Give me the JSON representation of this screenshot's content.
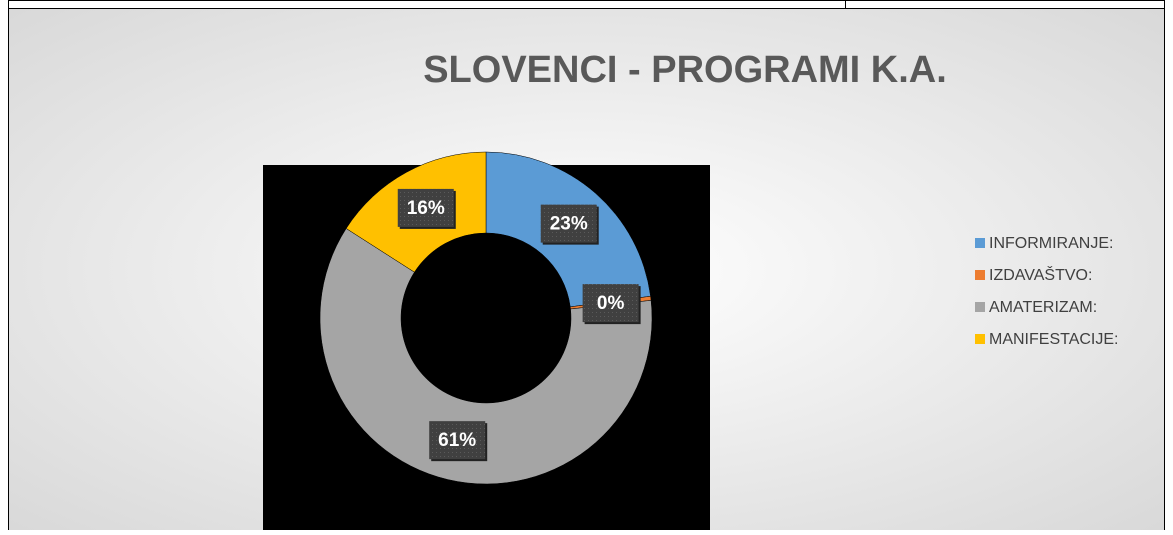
{
  "chart_data": {
    "type": "donut",
    "title": "SLOVENCI - PROGRAMI K.A.",
    "categories": [
      "INFORMIRANJE:",
      "IZDAVAŠTVO:",
      "AMATERIZAM:",
      "MANIFESTACIJE:"
    ],
    "values": [
      23,
      0.4,
      61,
      16
    ],
    "value_labels": [
      "23%",
      "0%",
      "61%",
      "16%"
    ],
    "colors": [
      "#5b9bd5",
      "#ed7d31",
      "#a5a5a5",
      "#ffc000"
    ],
    "legend": "right"
  }
}
